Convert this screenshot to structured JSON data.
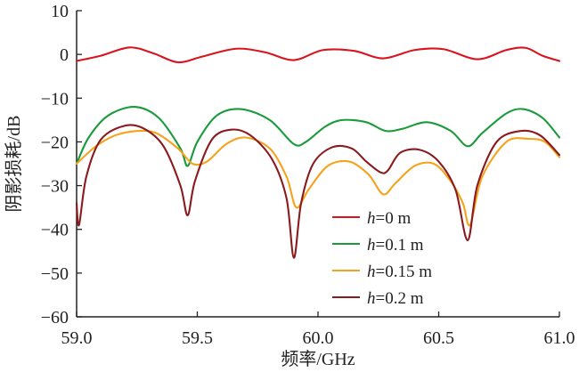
{
  "chart_data": {
    "type": "line",
    "xlabel": "频率/GHz",
    "ylabel": "阴影损耗/dB",
    "xlim": [
      59.0,
      61.0
    ],
    "ylim": [
      -60,
      10
    ],
    "xticks": [
      59.0,
      59.5,
      60.0,
      60.5,
      61.0
    ],
    "xtick_labels": [
      "59.0",
      "59.5",
      "60.0",
      "60.5",
      "61.0"
    ],
    "yticks": [
      10,
      0,
      -10,
      -20,
      -30,
      -40,
      -50,
      -60
    ],
    "ytick_labels": [
      "10",
      "0",
      "−10",
      "−20",
      "−30",
      "−40",
      "−50",
      "−60"
    ],
    "grid": false,
    "legend_position": "bottom-center",
    "series": [
      {
        "name_var": "h",
        "name_rest": "=0 m",
        "color": "#d9141f",
        "x": [
          59.0,
          59.1,
          59.22,
          59.32,
          59.42,
          59.52,
          59.66,
          59.78,
          59.9,
          60.02,
          60.15,
          60.27,
          60.4,
          60.52,
          60.66,
          60.78,
          60.86,
          60.93,
          61.0
        ],
        "y": [
          -1.5,
          -0.3,
          1.6,
          0.2,
          -1.8,
          -0.5,
          1.3,
          0.5,
          -1.3,
          1.0,
          0.8,
          -0.9,
          1.0,
          1.2,
          -1.1,
          1.0,
          1.5,
          -0.3,
          -1.5
        ]
      },
      {
        "name_var": "h",
        "name_rest": "=0.1 m",
        "color": "#1a9a3a",
        "x": [
          59.0,
          59.05,
          59.13,
          59.24,
          59.34,
          59.43,
          59.46,
          59.5,
          59.58,
          59.68,
          59.8,
          59.9,
          59.95,
          60.03,
          60.1,
          60.2,
          60.28,
          60.35,
          60.45,
          60.55,
          60.62,
          60.68,
          60.78,
          60.85,
          60.93,
          61.0
        ],
        "y": [
          -25.0,
          -19.0,
          -14.0,
          -12.0,
          -14.5,
          -21.5,
          -25.5,
          -20.0,
          -14.0,
          -12.5,
          -15.0,
          -20.5,
          -20.0,
          -16.5,
          -15.0,
          -15.5,
          -17.5,
          -17.0,
          -15.5,
          -17.5,
          -21.0,
          -18.0,
          -13.5,
          -12.5,
          -14.5,
          -19.0
        ]
      },
      {
        "name_var": "h",
        "name_rest": "=0.15 m",
        "color": "#f5a21c",
        "x": [
          59.0,
          59.08,
          59.16,
          59.25,
          59.33,
          59.42,
          59.48,
          59.54,
          59.62,
          59.7,
          59.8,
          59.87,
          59.91,
          59.96,
          60.04,
          60.13,
          60.21,
          60.27,
          60.32,
          60.4,
          60.48,
          60.55,
          60.6,
          60.63,
          60.68,
          60.78,
          60.87,
          60.94,
          61.0
        ],
        "y": [
          -25.0,
          -21.0,
          -18.5,
          -17.5,
          -18.0,
          -21.5,
          -25.0,
          -24.5,
          -20.5,
          -19.0,
          -21.5,
          -28.0,
          -35.0,
          -31.0,
          -25.5,
          -24.5,
          -27.5,
          -32.0,
          -29.5,
          -25.5,
          -25.0,
          -29.0,
          -34.0,
          -39.0,
          -28.0,
          -20.0,
          -19.3,
          -20.0,
          -23.5
        ]
      },
      {
        "name_var": "h",
        "name_rest": "=0.2 m",
        "color": "#8b1a1e",
        "x": [
          59.0,
          59.01,
          59.04,
          59.1,
          59.2,
          59.28,
          59.36,
          59.43,
          59.46,
          59.49,
          59.56,
          59.64,
          59.72,
          59.81,
          59.87,
          59.9,
          59.93,
          59.98,
          60.06,
          60.14,
          60.2,
          60.26,
          60.29,
          60.34,
          60.42,
          60.5,
          60.57,
          60.62,
          60.66,
          60.74,
          60.84,
          60.92,
          61.0
        ],
        "y": [
          -34.0,
          -39.0,
          -28.0,
          -19.5,
          -16.3,
          -17.0,
          -21.0,
          -30.0,
          -36.8,
          -29.0,
          -19.5,
          -17.2,
          -18.5,
          -24.0,
          -33.0,
          -46.5,
          -34.0,
          -25.0,
          -21.2,
          -21.5,
          -24.5,
          -27.0,
          -26.5,
          -22.5,
          -21.8,
          -24.5,
          -31.0,
          -42.5,
          -30.0,
          -20.0,
          -17.5,
          -18.5,
          -23.0
        ]
      }
    ]
  }
}
